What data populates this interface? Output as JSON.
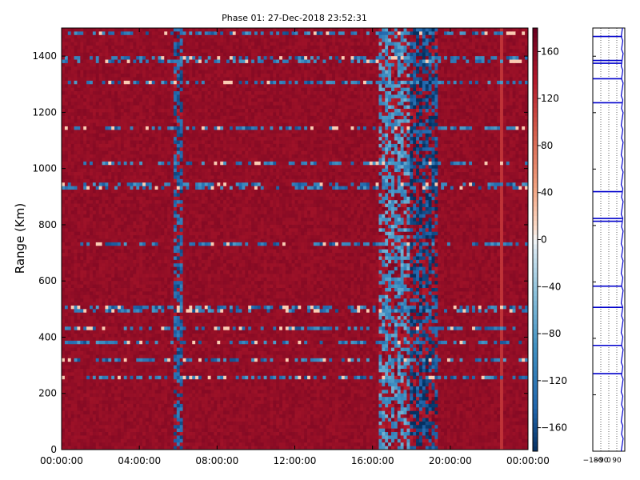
{
  "chart_data": [
    {
      "type": "heatmap",
      "title": "Phase 01: 27-Dec-2018 23:52:31",
      "xlabel": "",
      "ylabel": "Range (Km)",
      "x_ticks": [
        "00:00:00",
        "04:00:00",
        "08:00:00",
        "12:00:00",
        "16:00:00",
        "20:00:00",
        "00:00:00"
      ],
      "x_range_hours": [
        0,
        24
      ],
      "y_ticks": [
        0,
        200,
        400,
        600,
        800,
        1000,
        1200,
        1400
      ],
      "ylim": [
        0,
        1500
      ],
      "colorbar": {
        "ticks": [
          160,
          120,
          80,
          40,
          0,
          -40,
          -80,
          -120,
          -160
        ],
        "range": [
          -180,
          180
        ],
        "colormap": "RdBu_r",
        "colors": {
          "high": "#b01a2b",
          "mid": "#f5f5f5",
          "low": "#0b2f5a"
        }
      },
      "background_value": 155,
      "horizontal_bands_km": [
        1480,
        1395,
        1380,
        1310,
        1140,
        1020,
        945,
        930,
        730,
        500,
        430,
        385,
        320,
        255
      ],
      "vertical_features_hours": [
        {
          "start": 5.7,
          "end": 6.3,
          "value": -140
        },
        {
          "start": 16.3,
          "end": 17.9,
          "value": -90
        },
        {
          "start": 17.9,
          "end": 19.4,
          "value": -160
        },
        {
          "start": 22.6,
          "end": 22.7,
          "value": 120
        }
      ],
      "grid": false
    },
    {
      "type": "line",
      "title": "",
      "xlabel": "",
      "ylabel": "",
      "x_ticks": [
        "-180",
        "-90",
        "0",
        "90"
      ],
      "xlim": [
        -180,
        180
      ],
      "ylim": [
        0,
        1500
      ],
      "grid": true,
      "line_color": "#0000cc",
      "spike_ranges_km": [
        1470,
        1385,
        1375,
        1320,
        1235,
        920,
        825,
        815,
        585,
        510,
        375,
        275
      ],
      "baseline_value": 150
    }
  ]
}
